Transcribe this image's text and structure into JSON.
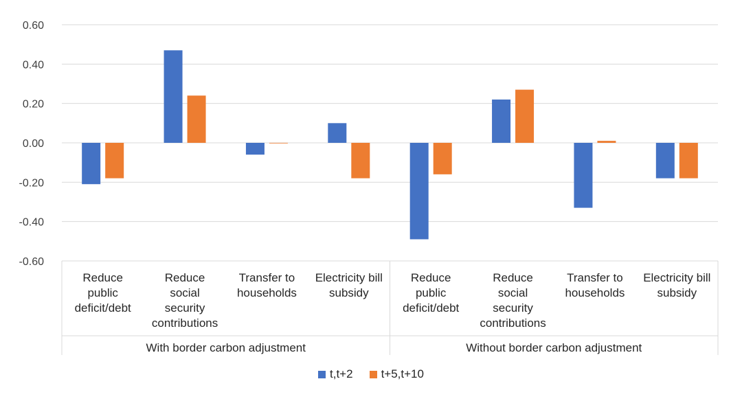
{
  "chart_data": {
    "type": "bar",
    "title": "",
    "xlabel": "",
    "ylabel": "",
    "ylim": [
      -0.6,
      0.6
    ],
    "yticks": [
      "0.60",
      "0.40",
      "0.20",
      "0.00",
      "-0.20",
      "-0.40",
      "-0.60"
    ],
    "ytick_values": [
      0.6,
      0.4,
      0.2,
      0.0,
      -0.2,
      -0.4,
      -0.6
    ],
    "groups": [
      {
        "label": "With border carbon adjustment",
        "categories": [
          {
            "lines": [
              "Reduce",
              "public",
              "deficit/debt"
            ]
          },
          {
            "lines": [
              "Reduce",
              "social",
              "security",
              "contributions"
            ]
          },
          {
            "lines": [
              "Transfer to",
              "households"
            ]
          },
          {
            "lines": [
              "Electricity bill",
              "subsidy"
            ]
          }
        ]
      },
      {
        "label": "Without border carbon adjustment",
        "categories": [
          {
            "lines": [
              "Reduce",
              "public",
              "deficit/debt"
            ]
          },
          {
            "lines": [
              "Reduce",
              "social",
              "security",
              "contributions"
            ]
          },
          {
            "lines": [
              "Transfer to",
              "households"
            ]
          },
          {
            "lines": [
              "Electricity bill",
              "subsidy"
            ]
          }
        ]
      }
    ],
    "series": [
      {
        "name": "t,t+2",
        "color": "#4472C4",
        "values": [
          -0.21,
          0.47,
          -0.06,
          0.1,
          -0.49,
          0.22,
          -0.33,
          -0.18
        ]
      },
      {
        "name": "t+5,t+10",
        "color": "#ED7D31",
        "values": [
          -0.18,
          0.24,
          0.0,
          -0.18,
          -0.16,
          0.27,
          0.01,
          -0.18
        ]
      }
    ],
    "legend_position": "bottom"
  }
}
